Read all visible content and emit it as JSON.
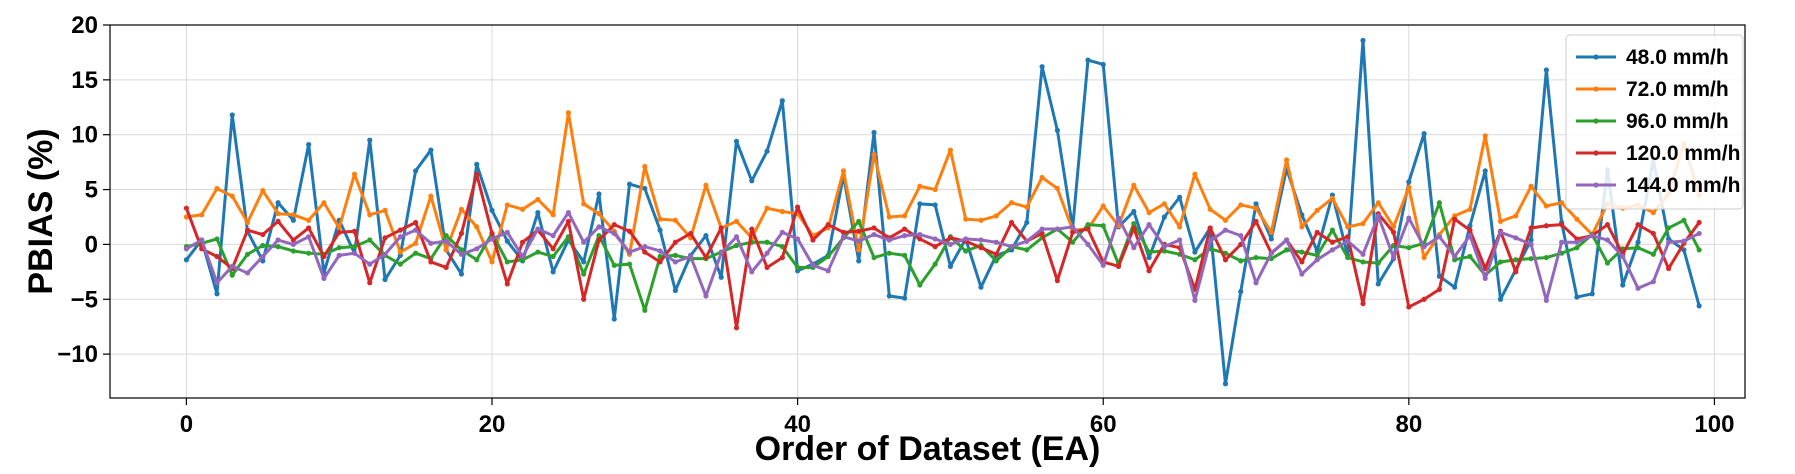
{
  "chart_data": {
    "type": "line",
    "xlabel": "Order of Dataset (EA)",
    "ylabel": "PBIAS (%)",
    "xlim": [
      -5,
      102
    ],
    "ylim": [
      -14,
      20
    ],
    "xticks": [
      0,
      20,
      40,
      60,
      80,
      100
    ],
    "yticks": [
      -10,
      -5,
      0,
      5,
      10,
      15,
      20
    ],
    "grid": true,
    "legend_position": "top-right",
    "series": [
      {
        "name": "48.0 mm/h",
        "color": "#1f77b4",
        "values": [
          -1.4,
          0.4,
          -4.5,
          11.8,
          1.2,
          -1.5,
          3.8,
          2.2,
          9.1,
          -2.6,
          2.2,
          -0.8,
          9.5,
          -3.2,
          -1.0,
          6.7,
          8.6,
          -0.5,
          -2.7,
          7.3,
          3.1,
          0.3,
          -1.5,
          2.9,
          -2.5,
          0.4,
          -1.6,
          4.6,
          -6.8,
          5.5,
          5.1,
          1.3,
          -4.2,
          -1.0,
          0.8,
          -3.0,
          9.4,
          5.8,
          8.5,
          13.1,
          -2.4,
          -1.8,
          -1.0,
          6.3,
          -1.5,
          10.2,
          -4.7,
          -4.9,
          3.7,
          3.6,
          -2.0,
          0.5,
          -3.9,
          -1.0,
          -0.5,
          2.0,
          16.2,
          10.4,
          1.5,
          16.8,
          16.4,
          1.6,
          3.0,
          -1.2,
          2.5,
          4.3,
          -0.7,
          1.5,
          -12.7,
          -4.3,
          3.7,
          0.5,
          6.9,
          2.7,
          -0.6,
          4.5,
          -1.0,
          18.6,
          -3.6,
          -1.3,
          5.7,
          10.1,
          -2.9,
          -3.9,
          1.7,
          6.7,
          -5.0,
          -2.3,
          0.4,
          15.9,
          2.0,
          -4.8,
          -4.5,
          6.8,
          -3.7,
          0.2,
          7.7,
          0.5,
          -0.5,
          -5.6
        ]
      },
      {
        "name": "72.0 mm/h",
        "color": "#ff7f0e",
        "values": [
          2.5,
          2.7,
          5.1,
          4.4,
          2.0,
          4.9,
          2.8,
          2.7,
          2.2,
          3.8,
          1.5,
          6.4,
          2.7,
          3.1,
          -0.7,
          0.1,
          4.4,
          -0.5,
          3.2,
          1.6,
          -1.6,
          3.6,
          3.2,
          4.1,
          2.7,
          12.0,
          3.7,
          2.8,
          1.2,
          -0.9,
          7.1,
          2.3,
          2.2,
          0.6,
          5.4,
          1.5,
          2.1,
          0.6,
          3.3,
          3.0,
          2.8,
          0.8,
          1.5,
          6.7,
          -0.5,
          8.2,
          2.5,
          2.6,
          5.3,
          5.0,
          8.6,
          2.3,
          2.2,
          2.6,
          3.8,
          3.4,
          6.1,
          5.1,
          1.3,
          1.4,
          3.5,
          1.7,
          5.4,
          2.9,
          3.7,
          1.6,
          6.4,
          3.2,
          2.2,
          3.6,
          3.3,
          1.1,
          7.7,
          1.6,
          3.1,
          4.2,
          1.6,
          1.9,
          3.8,
          1.6,
          5.2,
          -1.2,
          0.9,
          2.6,
          3.2,
          9.9,
          2.1,
          2.6,
          5.3,
          3.5,
          3.8,
          2.3,
          0.9,
          3.7,
          3.3,
          3.6,
          2.9,
          4.6,
          9.2,
          4.5
        ]
      },
      {
        "name": "96.0 mm/h",
        "color": "#2ca02c",
        "values": [
          -0.2,
          0.1,
          0.5,
          -2.8,
          -0.9,
          -0.1,
          -0.2,
          -0.6,
          -0.8,
          -0.9,
          -0.3,
          -0.2,
          0.4,
          -1.0,
          -1.8,
          -0.8,
          -1.3,
          0.8,
          -0.5,
          -1.4,
          1.0,
          -1.6,
          -1.4,
          -0.7,
          -1.1,
          0.7,
          -2.7,
          0.8,
          -1.9,
          -1.8,
          -6.0,
          -1.1,
          -1.0,
          -1.3,
          -1.3,
          -0.7,
          -0.1,
          0.2,
          0.2,
          -0.2,
          -2.1,
          -2.1,
          -1.1,
          0.6,
          2.1,
          -1.2,
          -0.8,
          -1.0,
          -3.7,
          -1.8,
          0.7,
          -0.6,
          -0.1,
          -1.5,
          -0.2,
          -0.5,
          0.6,
          1.4,
          0.2,
          1.8,
          1.7,
          -1.8,
          1.9,
          -0.7,
          -0.6,
          -0.9,
          -1.4,
          -0.4,
          -0.8,
          -1.5,
          -1.2,
          -1.3,
          -0.5,
          -0.7,
          -1.0,
          1.3,
          -1.2,
          -1.6,
          -1.7,
          -0.1,
          -0.3,
          0.1,
          3.8,
          -1.4,
          -1.1,
          -2.8,
          -1.6,
          -1.4,
          -1.3,
          -1.2,
          -0.8,
          -0.3,
          0.9,
          -1.7,
          -0.4,
          -0.3,
          -0.9,
          1.5,
          2.2,
          -0.5
        ]
      },
      {
        "name": "120.0 mm/h",
        "color": "#d62728",
        "values": [
          3.3,
          -0.4,
          -1.1,
          -2.2,
          1.3,
          0.9,
          2.1,
          0.4,
          1.5,
          -1.1,
          1.1,
          1.2,
          -3.5,
          0.6,
          1.3,
          2.0,
          -1.6,
          -2.1,
          1.0,
          6.4,
          1.0,
          -3.6,
          0.2,
          1.3,
          -0.4,
          2.1,
          -5.0,
          0.4,
          1.8,
          1.2,
          -0.7,
          -1.6,
          0.2,
          1.0,
          -1.2,
          1.5,
          -7.6,
          1.4,
          -2.1,
          -1.2,
          3.4,
          0.4,
          1.8,
          1.1,
          1.2,
          1.5,
          0.6,
          1.4,
          0.5,
          -0.2,
          0.6,
          0.3,
          -0.3,
          -0.9,
          2.0,
          0.3,
          1.0,
          -3.3,
          1.1,
          1.4,
          -1.6,
          -2.0,
          1.5,
          -2.4,
          0.0,
          -0.3,
          -4.1,
          1.5,
          -1.4,
          0.0,
          2.1,
          -0.8,
          0.4,
          -1.6,
          1.1,
          0.2,
          0.7,
          -5.4,
          2.8,
          1.1,
          -5.7,
          -5.0,
          -4.1,
          2.3,
          1.3,
          -2.2,
          1.2,
          -2.5,
          1.5,
          1.7,
          1.8,
          0.5,
          0.8,
          1.8,
          -0.9,
          1.8,
          1.0,
          -2.2,
          0.1,
          2.0
        ]
      },
      {
        "name": "144.0 mm/h",
        "color": "#9467bd",
        "values": [
          -0.4,
          0.4,
          -3.5,
          -2.0,
          -2.6,
          -1.1,
          0.4,
          0.0,
          0.7,
          -3.1,
          -1.0,
          -0.8,
          -1.8,
          -0.9,
          0.7,
          1.3,
          0.1,
          0.3,
          -0.9,
          -0.4,
          0.5,
          1.1,
          -1.1,
          1.4,
          0.8,
          2.9,
          0.2,
          1.6,
          1.0,
          -0.7,
          -0.2,
          -0.6,
          -1.6,
          -1.1,
          -4.7,
          -0.8,
          0.7,
          -2.5,
          -0.8,
          1.1,
          0.5,
          -1.9,
          -2.4,
          0.7,
          0.3,
          0.9,
          0.4,
          0.8,
          0.9,
          0.5,
          0.0,
          0.5,
          0.4,
          0.2,
          -0.2,
          0.3,
          1.4,
          1.4,
          1.6,
          0.0,
          -1.9,
          2.4,
          -0.3,
          1.8,
          -0.2,
          0.4,
          -5.1,
          0.3,
          1.3,
          0.8,
          -3.5,
          -0.8,
          0.4,
          -2.7,
          -1.4,
          -0.5,
          0.3,
          -0.9,
          2.6,
          -1.2,
          2.4,
          -0.2,
          0.7,
          -1.1,
          0.8,
          -3.1,
          1.1,
          0.6,
          0.0,
          -5.1,
          0.2,
          0.2,
          0.8,
          0.4,
          -1.1,
          -4.0,
          -3.4,
          0.2,
          0.3,
          1.0
        ]
      }
    ]
  }
}
